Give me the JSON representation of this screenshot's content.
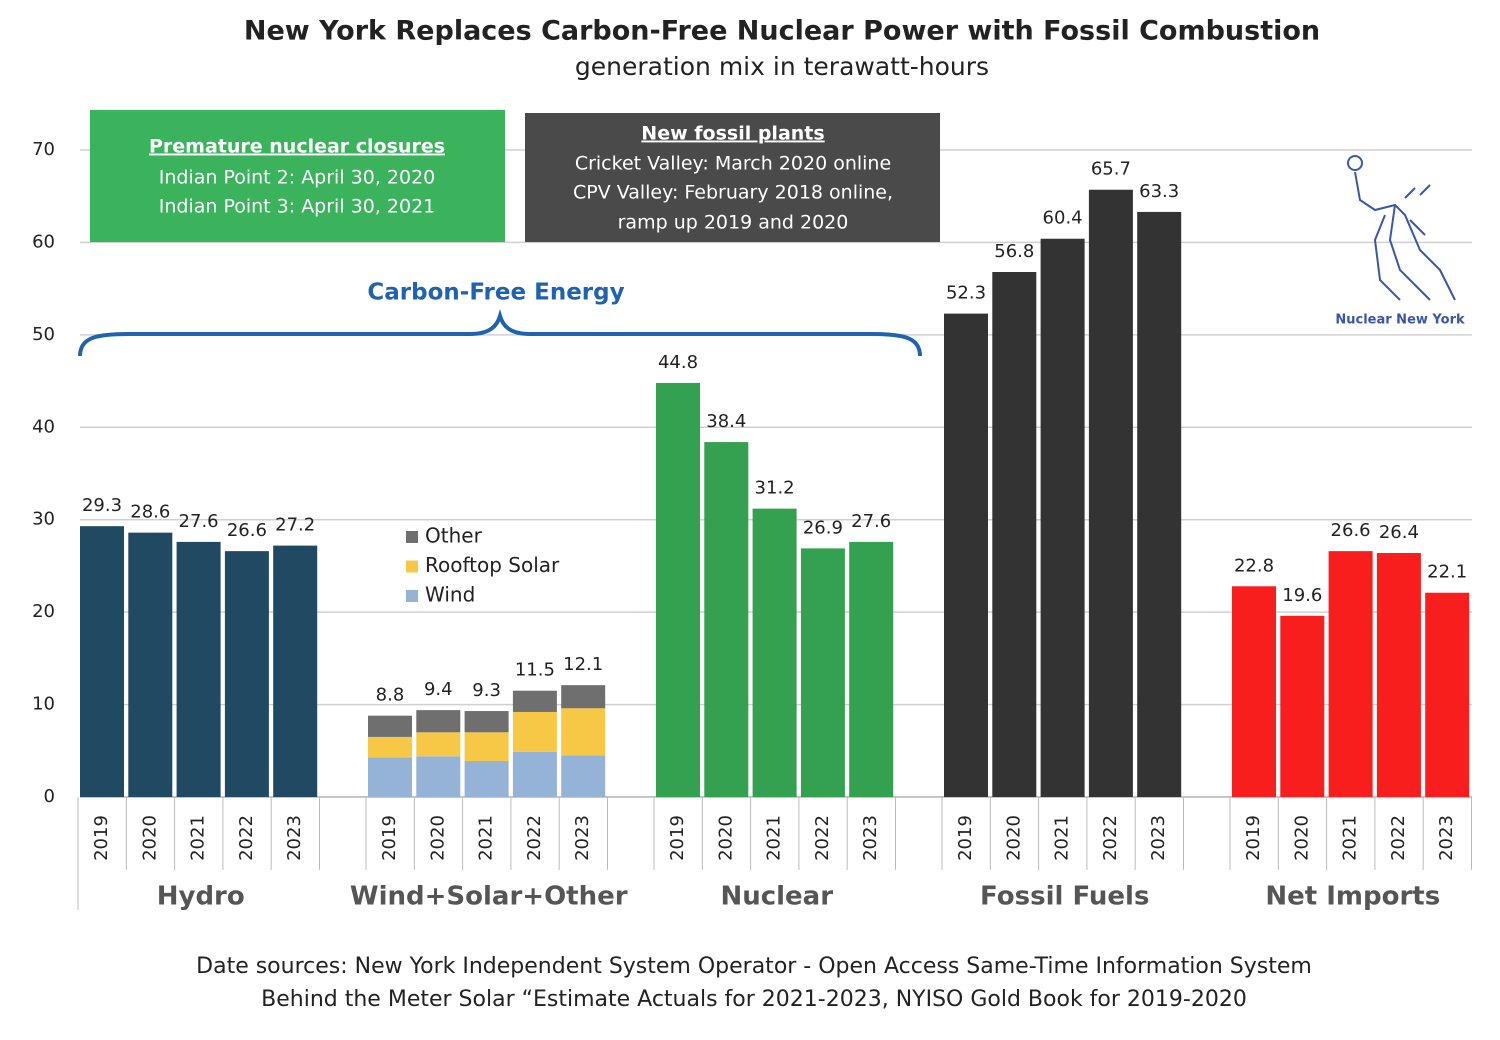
{
  "chart_data": {
    "type": "bar",
    "title": "New York Replaces Carbon-Free Nuclear Power with Fossil Combustion",
    "subtitle": "generation mix in terawatt-hours",
    "ylim": [
      0,
      70
    ],
    "yticks": [
      0,
      10,
      20,
      30,
      40,
      50,
      60,
      70
    ],
    "grid": true,
    "groups": [
      {
        "name": "Hydro",
        "color": "#1f4a62",
        "categories": [
          "2019",
          "2020",
          "2021",
          "2022",
          "2023"
        ],
        "values": [
          29.3,
          28.6,
          27.6,
          26.6,
          27.2
        ]
      },
      {
        "name": "Wind+Solar+Other",
        "stacked": true,
        "categories": [
          "2019",
          "2020",
          "2021",
          "2022",
          "2023"
        ],
        "series": [
          {
            "name": "Wind",
            "color": "#95b3d7",
            "values": [
              4.3,
              4.4,
              3.9,
              4.9,
              4.5
            ]
          },
          {
            "name": "Rooftop Solar",
            "color": "#f7c846",
            "values": [
              2.2,
              2.6,
              3.1,
              4.3,
              5.1
            ]
          },
          {
            "name": "Other",
            "color": "#6f6f6f",
            "values": [
              2.3,
              2.4,
              2.3,
              2.3,
              2.5
            ]
          }
        ],
        "totals": [
          8.8,
          9.4,
          9.3,
          11.5,
          12.1
        ]
      },
      {
        "name": "Nuclear",
        "color": "#33a150",
        "categories": [
          "2019",
          "2020",
          "2021",
          "2022",
          "2023"
        ],
        "values": [
          44.8,
          38.4,
          31.2,
          26.9,
          27.6
        ]
      },
      {
        "name": "Fossil Fuels",
        "color": "#333333",
        "categories": [
          "2019",
          "2020",
          "2021",
          "2022",
          "2023"
        ],
        "values": [
          52.3,
          56.8,
          60.4,
          65.7,
          63.3
        ]
      },
      {
        "name": "Net Imports",
        "color": "#f81e1e",
        "categories": [
          "2019",
          "2020",
          "2021",
          "2022",
          "2023"
        ],
        "values": [
          22.8,
          19.6,
          26.6,
          26.4,
          22.1
        ]
      }
    ],
    "annotations": {
      "nuclear_box": {
        "title": "Premature nuclear closures",
        "lines": [
          "Indian Point 2: April 30, 2020",
          "Indian Point 3: April 30, 2021"
        ]
      },
      "fossil_box": {
        "title": "New fossil plants",
        "lines": [
          "Cricket Valley: March 2020 online",
          "CPV Valley: February 2018 online,",
          "ramp up 2019 and 2020"
        ]
      },
      "brace_label": "Carbon-Free Energy",
      "logo": "Nuclear New York"
    },
    "footnotes": [
      "Date sources: New York Independent System Operator - Open Access Same-Time Information System",
      "Behind the Meter Solar “Estimate Actuals for 2021-2023, NYISO Gold Book for 2019-2020"
    ]
  }
}
